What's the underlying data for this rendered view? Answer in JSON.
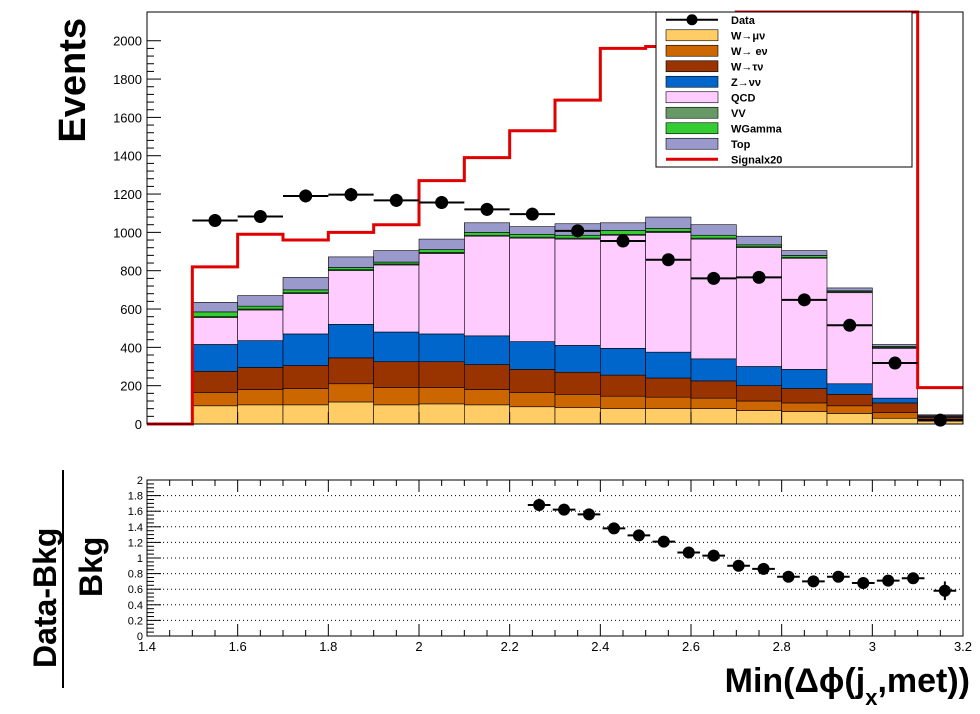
{
  "chart_data": [
    {
      "type": "area",
      "subtype": "stacked-histogram",
      "title": "",
      "xlabel": "",
      "ylabel": "Events",
      "xlim": [
        1.4,
        3.2
      ],
      "ylim": [
        0,
        2150
      ],
      "xticks": [
        "1.4",
        "1.6",
        "1.8",
        "2",
        "2.2",
        "2.4",
        "2.6",
        "2.8",
        "3",
        "3.2"
      ],
      "yticks": [
        "0",
        "200",
        "400",
        "600",
        "800",
        "1000",
        "1200",
        "1400",
        "1600",
        "1800",
        "2000"
      ],
      "bin_edges": [
        1.4,
        1.5,
        1.6,
        1.7,
        1.8,
        1.9,
        2.0,
        2.1,
        2.2,
        2.3,
        2.4,
        2.5,
        2.6,
        2.7,
        2.8,
        2.9,
        3.0,
        3.1,
        3.2
      ],
      "legend_position": "top-right",
      "stack_series": [
        {
          "name": "W→μν",
          "color": "#ffcc66",
          "values": [
            0,
            95,
            100,
            100,
            115,
            100,
            105,
            100,
            90,
            85,
            80,
            80,
            80,
            70,
            65,
            55,
            30,
            15
          ]
        },
        {
          "name": "W→ eν",
          "color": "#cc6600",
          "values": [
            0,
            70,
            80,
            85,
            95,
            90,
            85,
            80,
            75,
            70,
            65,
            60,
            55,
            50,
            45,
            40,
            30,
            10
          ]
        },
        {
          "name": "W→τν",
          "color": "#993300",
          "values": [
            0,
            110,
            115,
            120,
            135,
            135,
            135,
            130,
            120,
            115,
            110,
            100,
            90,
            80,
            75,
            60,
            50,
            10
          ]
        },
        {
          "name": "Z→νν",
          "color": "#0066cc",
          "values": [
            0,
            140,
            140,
            165,
            175,
            155,
            145,
            150,
            145,
            140,
            140,
            135,
            115,
            100,
            100,
            55,
            25,
            5
          ]
        },
        {
          "name": "QCD",
          "color": "#ffccff",
          "values": [
            0,
            140,
            160,
            210,
            280,
            350,
            420,
            520,
            540,
            555,
            590,
            625,
            625,
            620,
            580,
            475,
            260,
            5
          ]
        },
        {
          "name": "VV",
          "color": "#669966",
          "values": [
            0,
            5,
            5,
            5,
            5,
            5,
            5,
            5,
            5,
            5,
            5,
            5,
            5,
            5,
            5,
            5,
            5,
            0
          ]
        },
        {
          "name": "WGamma",
          "color": "#33cc33",
          "values": [
            0,
            25,
            15,
            15,
            12,
            10,
            15,
            15,
            15,
            15,
            20,
            15,
            15,
            10,
            10,
            5,
            5,
            0
          ]
        },
        {
          "name": "Top",
          "color": "#9999cc",
          "values": [
            0,
            50,
            55,
            65,
            55,
            60,
            55,
            50,
            40,
            60,
            40,
            60,
            55,
            45,
            25,
            15,
            10,
            3
          ]
        }
      ],
      "signal": {
        "name": "Signalx20",
        "color": "#e00000",
        "values": [
          0,
          820,
          990,
          960,
          1000,
          1040,
          1270,
          1390,
          1530,
          1690,
          1960,
          1970,
          2030,
          2150,
          2150,
          2150,
          2150,
          190
        ]
      },
      "data": {
        "name": "Data",
        "color": "#000000",
        "points": [
          {
            "x": 1.55,
            "y": 1062,
            "err": 33
          },
          {
            "x": 1.65,
            "y": 1083,
            "err": 33
          },
          {
            "x": 1.75,
            "y": 1190,
            "err": 34
          },
          {
            "x": 1.85,
            "y": 1197,
            "err": 35
          },
          {
            "x": 1.95,
            "y": 1167,
            "err": 34
          },
          {
            "x": 2.05,
            "y": 1156,
            "err": 34
          },
          {
            "x": 2.15,
            "y": 1120,
            "err": 33
          },
          {
            "x": 2.25,
            "y": 1095,
            "err": 33
          },
          {
            "x": 2.35,
            "y": 1008,
            "err": 32
          },
          {
            "x": 2.45,
            "y": 955,
            "err": 31
          },
          {
            "x": 2.55,
            "y": 857,
            "err": 29
          },
          {
            "x": 2.65,
            "y": 760,
            "err": 28
          },
          {
            "x": 2.75,
            "y": 765,
            "err": 28
          },
          {
            "x": 2.85,
            "y": 648,
            "err": 25
          },
          {
            "x": 2.95,
            "y": 515,
            "err": 23
          },
          {
            "x": 3.05,
            "y": 318,
            "err": 18
          },
          {
            "x": 3.15,
            "y": 20,
            "err": 5
          }
        ]
      }
    },
    {
      "type": "scatter",
      "title": "",
      "xlabel": "Min(Δϕ(j",
      "xlabel_sub": "x",
      "xlabel_end": ",met))",
      "ylabel_num": "Data-Bkg",
      "ylabel_den": "Bkg",
      "xlim": [
        1.4,
        3.2
      ],
      "ylim": [
        0,
        2
      ],
      "xticks": [
        "1.4",
        "1.6",
        "1.8",
        "2",
        "2.2",
        "2.4",
        "2.6",
        "2.8",
        "3",
        "3.2"
      ],
      "yticks": [
        "0",
        "0.2",
        "0.4",
        "0.6",
        "0.8",
        "1",
        "1.2",
        "1.4",
        "1.6",
        "1.8",
        "2"
      ],
      "grid": true,
      "points": [
        {
          "x": 2.265,
          "y": 1.68,
          "err": 0.08
        },
        {
          "x": 2.32,
          "y": 1.62,
          "err": 0.07
        },
        {
          "x": 2.375,
          "y": 1.56,
          "err": 0.07
        },
        {
          "x": 2.43,
          "y": 1.38,
          "err": 0.06
        },
        {
          "x": 2.485,
          "y": 1.29,
          "err": 0.05
        },
        {
          "x": 2.54,
          "y": 1.21,
          "err": 0.05
        },
        {
          "x": 2.595,
          "y": 1.07,
          "err": 0.05
        },
        {
          "x": 2.65,
          "y": 1.03,
          "err": 0.05
        },
        {
          "x": 2.705,
          "y": 0.9,
          "err": 0.05
        },
        {
          "x": 2.76,
          "y": 0.86,
          "err": 0.05
        },
        {
          "x": 2.815,
          "y": 0.76,
          "err": 0.04
        },
        {
          "x": 2.87,
          "y": 0.7,
          "err": 0.04
        },
        {
          "x": 2.925,
          "y": 0.76,
          "err": 0.05
        },
        {
          "x": 2.98,
          "y": 0.68,
          "err": 0.05
        },
        {
          "x": 3.035,
          "y": 0.71,
          "err": 0.05
        },
        {
          "x": 3.09,
          "y": 0.74,
          "err": 0.06
        },
        {
          "x": 3.16,
          "y": 0.58,
          "err": 0.12
        }
      ]
    }
  ]
}
